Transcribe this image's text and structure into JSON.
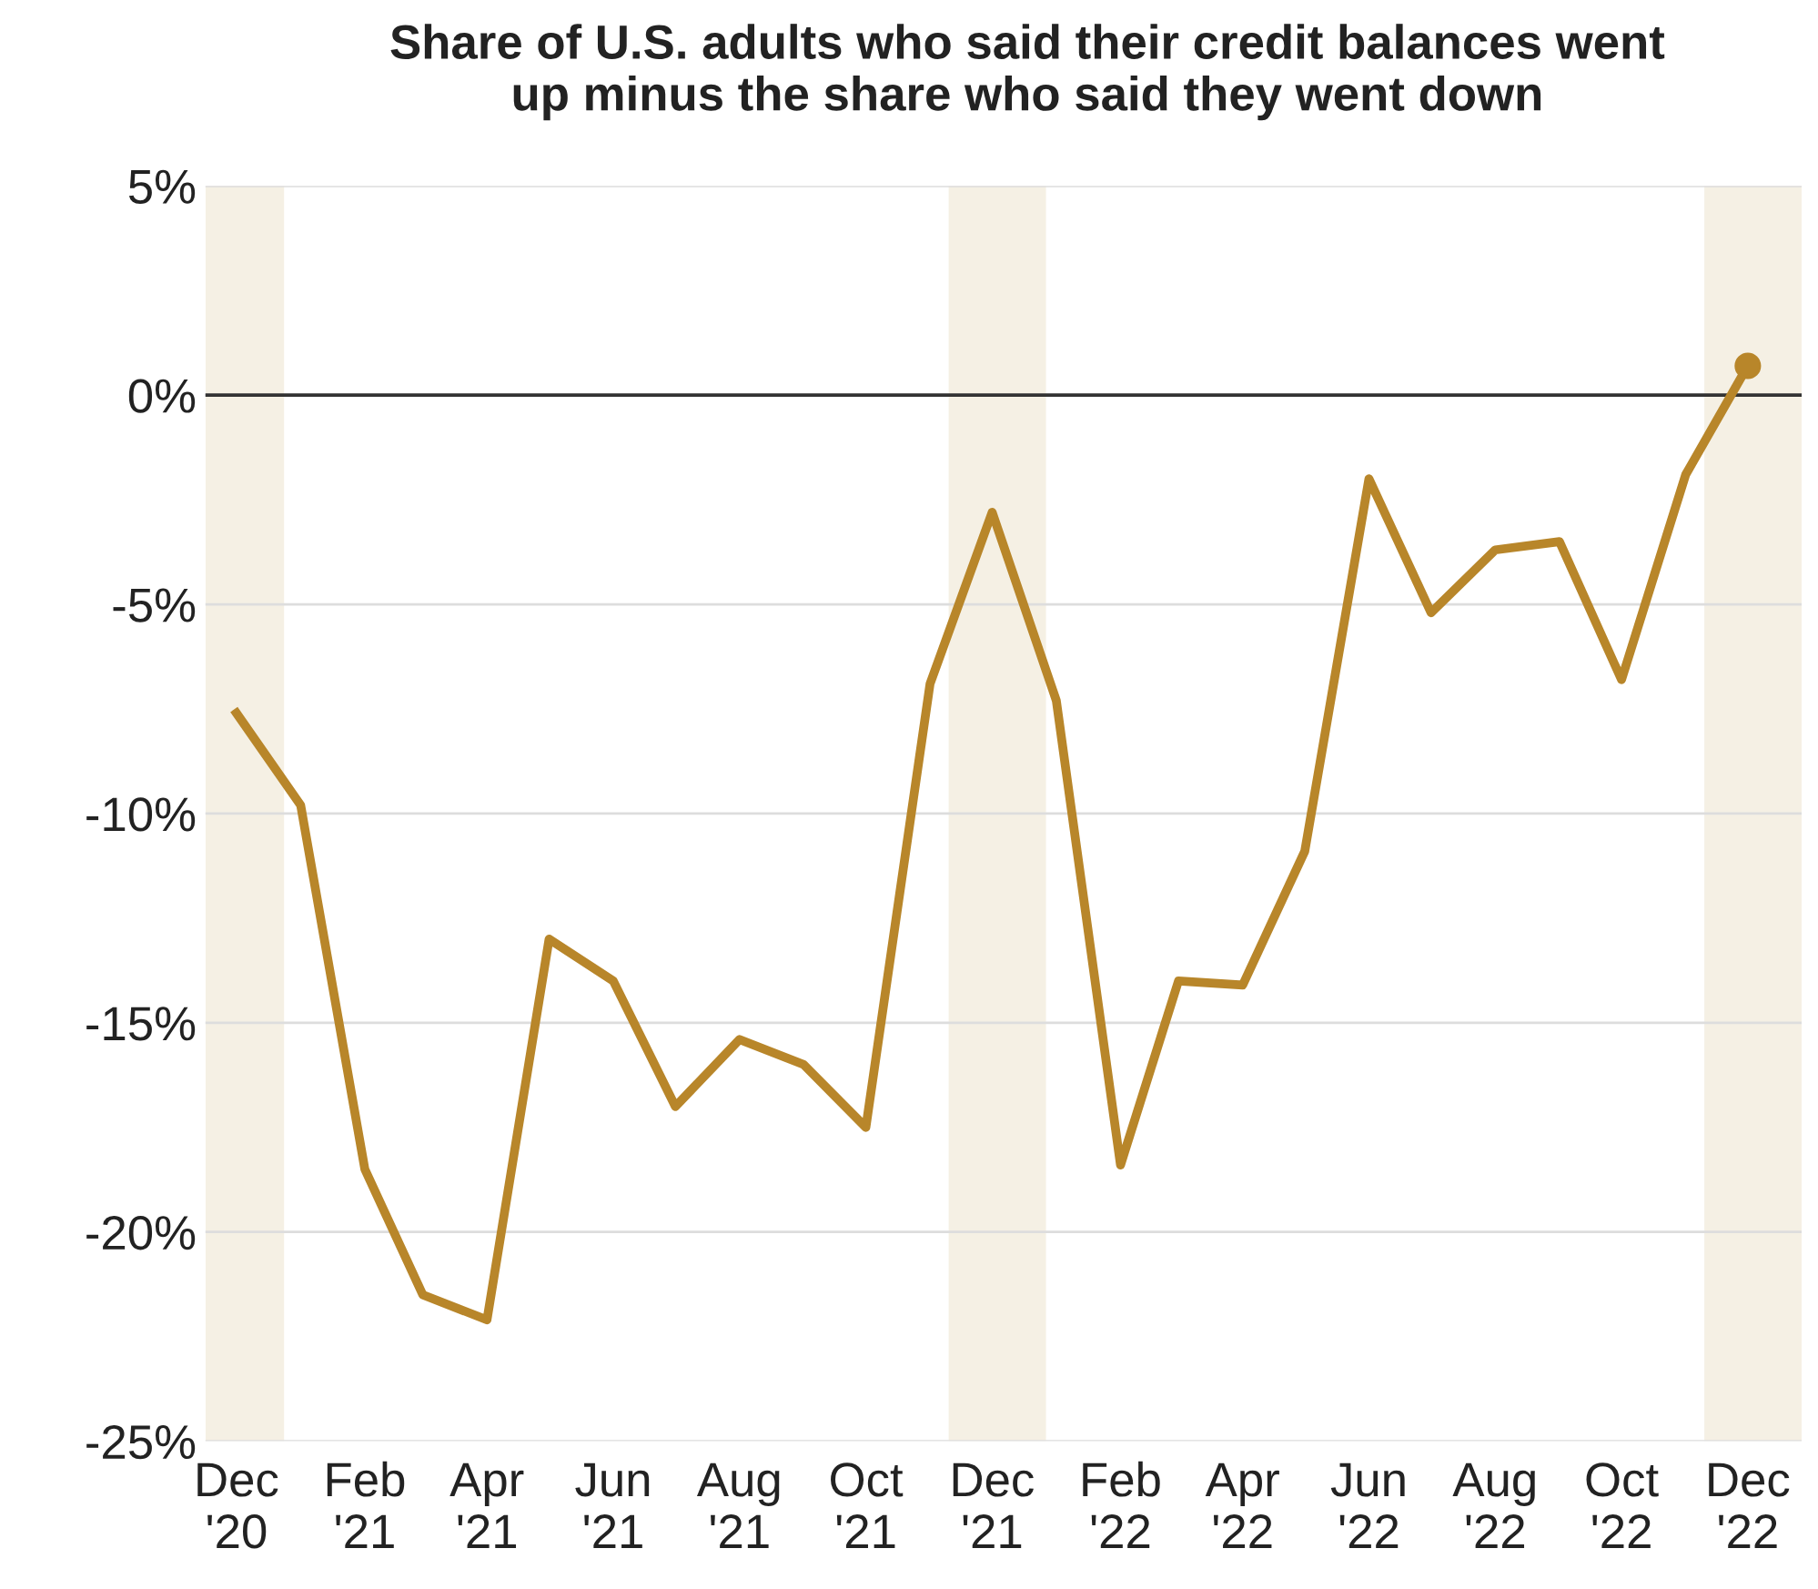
{
  "chart_data": {
    "type": "line",
    "title": "Share of U.S. adults who said their credit balances went\nup minus the share who said they went down",
    "x": [
      "2020-12",
      "2021-01",
      "2021-02",
      "2021-03",
      "2021-04",
      "2021-05",
      "2021-06",
      "2021-07",
      "2021-08",
      "2021-09",
      "2021-10",
      "2021-11",
      "2021-12",
      "2022-01",
      "2022-02",
      "2022-03",
      "2022-04",
      "2022-05",
      "2022-06",
      "2022-07",
      "2022-08",
      "2022-09",
      "2022-10",
      "2022-11",
      "2022-12"
    ],
    "series": [
      {
        "color": "#b8862a",
        "values": [
          -7.6,
          -9.8,
          -18.5,
          -21.5,
          -22.1,
          -13.0,
          -14.0,
          -17.0,
          -15.4,
          -16.0,
          -17.5,
          -6.9,
          -2.8,
          -7.3,
          -18.4,
          -14.0,
          -14.1,
          -10.9,
          -2.0,
          -5.2,
          -3.7,
          -3.5,
          -6.8,
          -1.9,
          0.7
        ]
      },
      {
        "type": "scatter",
        "color": "#b8862a",
        "x": [
          "2022-12"
        ],
        "values": [
          0.7
        ]
      }
    ],
    "xlim": [
      "2020-11-16",
      "2022-12-27"
    ],
    "xticks": [
      {
        "value": "2020-12",
        "label": "Dec\n'20"
      },
      {
        "value": "2021-02",
        "label": "Feb\n'21"
      },
      {
        "value": "2021-04",
        "label": "Apr\n'21"
      },
      {
        "value": "2021-06",
        "label": "Jun\n'21"
      },
      {
        "value": "2021-08",
        "label": "Aug\n'21"
      },
      {
        "value": "2021-10",
        "label": "Oct\n'21"
      },
      {
        "value": "2021-12",
        "label": "Dec\n'21"
      },
      {
        "value": "2022-02",
        "label": "Feb\n'22"
      },
      {
        "value": "2022-04",
        "label": "Apr\n'22"
      },
      {
        "value": "2022-06",
        "label": "Jun\n'22"
      },
      {
        "value": "2022-08",
        "label": "Aug\n'22"
      },
      {
        "value": "2022-10",
        "label": "Oct\n'22"
      },
      {
        "value": "2022-12",
        "label": "Dec\n'22"
      }
    ],
    "ylim": [
      -25,
      5
    ],
    "yticks": [
      {
        "value": 5,
        "label": "5%"
      },
      {
        "value": 0,
        "label": "0%"
      },
      {
        "value": -5,
        "label": "-5%"
      },
      {
        "value": -10,
        "label": "-10%"
      },
      {
        "value": -15,
        "label": "-15%"
      },
      {
        "value": -20,
        "label": "-20%"
      },
      {
        "value": -25,
        "label": "-25%"
      }
    ],
    "grid": "y",
    "ref_lines": [
      {
        "axis": "y",
        "value": 0,
        "color": "#333333"
      }
    ],
    "bands": [
      {
        "axis": "x",
        "from": "2020-11-16",
        "to": "2020-12-24",
        "color": "#f5f0e4"
      },
      {
        "axis": "x",
        "from": "2021-11-10",
        "to": "2021-12-27",
        "color": "#f5f0e4"
      },
      {
        "axis": "x",
        "from": "2022-11-10",
        "to": "2022-12-27",
        "color": "#f5f0e4"
      }
    ]
  }
}
